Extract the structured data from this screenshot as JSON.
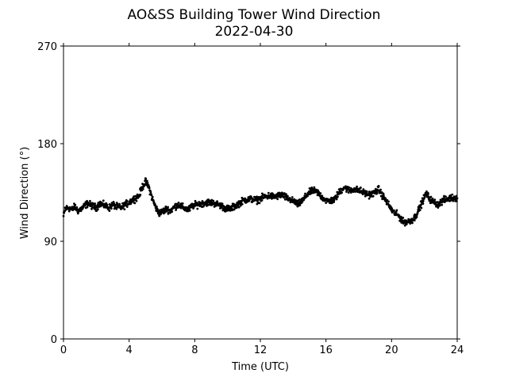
{
  "chart_data": {
    "type": "scatter",
    "title": "AO&SS Building Tower Wind Direction",
    "subtitle": "2022-04-30",
    "xlabel": "Time (UTC)",
    "ylabel": "Wind Direction (°)",
    "xlim": [
      0,
      24
    ],
    "ylim": [
      0,
      270
    ],
    "xticks": [
      0,
      4,
      8,
      12,
      16,
      20,
      24
    ],
    "xtick_labels": [
      "0",
      "4",
      "8",
      "12",
      "16",
      "20",
      "24"
    ],
    "yticks": [
      0,
      90,
      180,
      270
    ],
    "ytick_labels": [
      "0",
      "90",
      "180",
      "270"
    ],
    "grid": false,
    "marker_color": "#000000",
    "series": [
      {
        "trend": [
          [
            0.0,
            113
          ],
          [
            0.1,
            120
          ],
          [
            0.3,
            121
          ],
          [
            0.5,
            119
          ],
          [
            0.7,
            122
          ],
          [
            0.9,
            118
          ],
          [
            1.1,
            120
          ],
          [
            1.3,
            123
          ],
          [
            1.5,
            125
          ],
          [
            1.7,
            123
          ],
          [
            2.0,
            121
          ],
          [
            2.2,
            125
          ],
          [
            2.5,
            123
          ],
          [
            2.8,
            121
          ],
          [
            3.0,
            124
          ],
          [
            3.2,
            122
          ],
          [
            3.5,
            121
          ],
          [
            3.7,
            123
          ],
          [
            4.0,
            126
          ],
          [
            4.3,
            129
          ],
          [
            4.6,
            132
          ],
          [
            4.8,
            140
          ],
          [
            5.0,
            145
          ],
          [
            5.2,
            140
          ],
          [
            5.4,
            130
          ],
          [
            5.6,
            122
          ],
          [
            5.8,
            116
          ],
          [
            6.0,
            117
          ],
          [
            6.3,
            120
          ],
          [
            6.5,
            118
          ],
          [
            6.8,
            122
          ],
          [
            7.0,
            124
          ],
          [
            7.3,
            121
          ],
          [
            7.6,
            119
          ],
          [
            7.9,
            123
          ],
          [
            8.2,
            124
          ],
          [
            8.5,
            125
          ],
          [
            8.8,
            126
          ],
          [
            9.2,
            125
          ],
          [
            9.6,
            123
          ],
          [
            9.9,
            120
          ],
          [
            10.2,
            120
          ],
          [
            10.6,
            124
          ],
          [
            11.0,
            128
          ],
          [
            11.4,
            129
          ],
          [
            11.8,
            128
          ],
          [
            12.1,
            130
          ],
          [
            12.5,
            132
          ],
          [
            12.9,
            131
          ],
          [
            13.3,
            133
          ],
          [
            13.6,
            130
          ],
          [
            14.0,
            127
          ],
          [
            14.3,
            124
          ],
          [
            14.6,
            128
          ],
          [
            14.9,
            134
          ],
          [
            15.2,
            137
          ],
          [
            15.5,
            135
          ],
          [
            15.8,
            130
          ],
          [
            16.1,
            127
          ],
          [
            16.5,
            128
          ],
          [
            16.8,
            135
          ],
          [
            17.1,
            140
          ],
          [
            17.4,
            137
          ],
          [
            17.7,
            138
          ],
          [
            18.0,
            137
          ],
          [
            18.3,
            135
          ],
          [
            18.6,
            133
          ],
          [
            18.9,
            134
          ],
          [
            19.2,
            138
          ],
          [
            19.5,
            131
          ],
          [
            19.8,
            124
          ],
          [
            20.1,
            117
          ],
          [
            20.4,
            114
          ],
          [
            20.7,
            108
          ],
          [
            21.0,
            108
          ],
          [
            21.3,
            110
          ],
          [
            21.5,
            114
          ],
          [
            21.8,
            124
          ],
          [
            22.1,
            134
          ],
          [
            22.4,
            128
          ],
          [
            22.8,
            124
          ],
          [
            23.2,
            128
          ],
          [
            23.6,
            130
          ],
          [
            24.0,
            130
          ]
        ],
        "spread": 3,
        "points_per_hour": 60
      }
    ]
  }
}
